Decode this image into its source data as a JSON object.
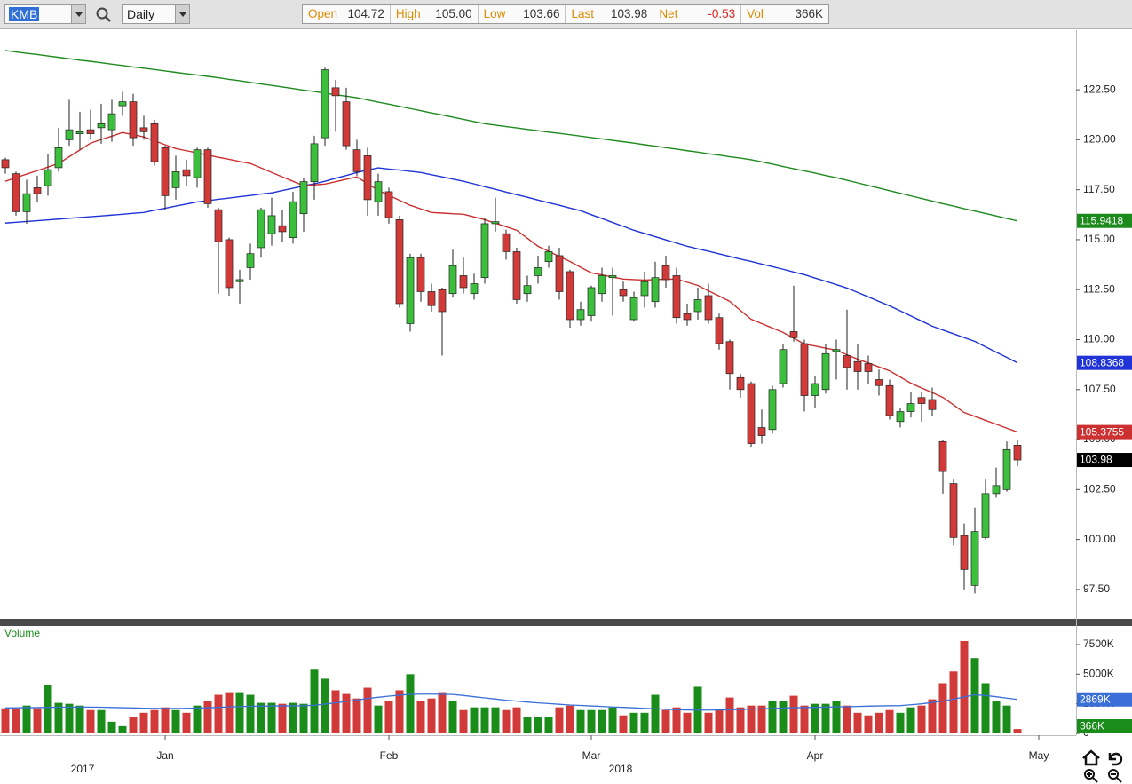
{
  "toolbar": {
    "symbol": "KMB",
    "interval": "Daily",
    "quote": [
      {
        "label": "Open",
        "value": "104.72"
      },
      {
        "label": "High",
        "value": "105.00"
      },
      {
        "label": "Low",
        "value": "103.66"
      },
      {
        "label": "Last",
        "value": "103.98"
      },
      {
        "label": "Net",
        "value": "-0.53"
      },
      {
        "label": "Vol",
        "value": "366K"
      }
    ]
  },
  "chart_data": {
    "type": "candlestick",
    "categories": [
      null,
      null,
      null,
      null,
      null,
      null,
      null,
      null,
      null,
      null,
      null,
      null,
      null,
      null,
      null,
      "Jan",
      null,
      null,
      null,
      null,
      null,
      null,
      null,
      null,
      null,
      null,
      null,
      null,
      null,
      null,
      null,
      null,
      null,
      null,
      null,
      null,
      "Feb",
      null,
      null,
      null,
      null,
      null,
      null,
      null,
      null,
      null,
      null,
      null,
      null,
      null,
      null,
      null,
      null,
      null,
      null,
      "Mar",
      null,
      null,
      null,
      null,
      null,
      null,
      null,
      null,
      null,
      null,
      null,
      null,
      null,
      null,
      null,
      null,
      null,
      null,
      null,
      null,
      "Apr",
      null,
      null,
      null,
      null,
      null,
      null,
      null,
      null,
      null,
      null,
      null,
      null,
      null,
      null,
      null,
      null,
      null,
      null,
      null,
      null,
      "May"
    ],
    "years": [
      "2017",
      "2018"
    ],
    "open": [
      119.0,
      118.3,
      116.4,
      117.6,
      117.7,
      118.6,
      120.0,
      120.3,
      120.5,
      120.6,
      120.5,
      121.7,
      121.9,
      120.6,
      120.8,
      119.6,
      117.6,
      118.5,
      118.1,
      119.5,
      116.5,
      115.0,
      112.9,
      113.6,
      114.6,
      115.3,
      115.7,
      115.1,
      116.3,
      117.9,
      120.1,
      122.6,
      121.9,
      119.5,
      119.2,
      116.9,
      117.4,
      116.0,
      110.8,
      114.1,
      112.4,
      112.5,
      112.3,
      113.2,
      112.3,
      113.1,
      115.8,
      115.3,
      114.4,
      112.3,
      113.2,
      113.9,
      114.2,
      113.4,
      111.0,
      111.2,
      112.3,
      113.1,
      112.5,
      111.0,
      112.2,
      111.9,
      113.7,
      113.2,
      111.3,
      111.4,
      112.2,
      111.1,
      109.9,
      108.1,
      107.8,
      105.6,
      105.5,
      107.8,
      110.4,
      109.8,
      107.2,
      107.5,
      109.4,
      109.2,
      108.9,
      108.8,
      108.0,
      107.7,
      105.9,
      106.4,
      107.1,
      107.0,
      104.9,
      102.8,
      100.2,
      97.7,
      100.1,
      102.3,
      102.5,
      104.72,
      null,
      null
    ],
    "high": [
      119.1,
      118.4,
      118.0,
      118.2,
      119.3,
      120.6,
      122.0,
      121.4,
      121.5,
      121.8,
      122.0,
      122.4,
      122.3,
      121.2,
      121.0,
      119.7,
      119.2,
      119.0,
      119.6,
      119.6,
      116.6,
      115.1,
      113.5,
      114.8,
      116.6,
      117.1,
      116.5,
      117.4,
      118.1,
      120.2,
      123.6,
      123.0,
      122.6,
      120.0,
      119.6,
      118.3,
      117.6,
      116.2,
      114.3,
      114.3,
      112.8,
      112.6,
      114.5,
      114.1,
      113.3,
      116.1,
      117.1,
      115.5,
      114.6,
      113.2,
      114.2,
      114.7,
      114.6,
      113.5,
      111.9,
      112.7,
      113.6,
      113.6,
      112.9,
      112.4,
      113.4,
      113.9,
      114.2,
      113.6,
      111.8,
      112.6,
      112.8,
      111.3,
      110.0,
      108.3,
      107.9,
      106.5,
      107.7,
      109.8,
      112.7,
      110.0,
      108.2,
      109.8,
      110.0,
      111.5,
      109.8,
      109.2,
      108.5,
      108.0,
      106.6,
      107.4,
      107.4,
      107.6,
      105.0,
      103.0,
      100.8,
      101.6,
      103.0,
      103.6,
      104.9,
      105.0,
      null,
      null
    ],
    "low": [
      118.3,
      116.2,
      115.8,
      116.9,
      117.2,
      118.4,
      119.7,
      119.5,
      120.0,
      119.8,
      119.9,
      121.2,
      119.7,
      120.0,
      118.7,
      116.5,
      117.0,
      117.7,
      117.6,
      116.6,
      112.3,
      112.2,
      111.8,
      113.0,
      114.1,
      114.7,
      114.9,
      114.8,
      115.4,
      117.0,
      119.7,
      120.4,
      119.5,
      118.2,
      116.2,
      116.2,
      115.8,
      111.6,
      110.4,
      111.9,
      111.4,
      109.2,
      112.1,
      112.3,
      112.0,
      112.8,
      115.4,
      114.0,
      111.8,
      111.9,
      112.8,
      113.6,
      112.0,
      110.6,
      110.7,
      110.9,
      111.9,
      111.2,
      111.9,
      110.9,
      111.6,
      111.6,
      112.6,
      110.8,
      110.7,
      111.0,
      110.8,
      109.5,
      107.5,
      107.1,
      104.6,
      104.8,
      105.3,
      107.6,
      109.9,
      106.4,
      106.6,
      107.3,
      108.0,
      107.5,
      107.5,
      107.8,
      107.2,
      106.0,
      105.6,
      106.1,
      105.9,
      106.2,
      102.3,
      99.7,
      97.5,
      97.3,
      100.0,
      102.1,
      102.4,
      103.66,
      null,
      null
    ],
    "close": [
      118.6,
      116.4,
      117.3,
      117.3,
      118.5,
      119.6,
      120.5,
      120.4,
      120.3,
      120.8,
      121.3,
      121.9,
      120.1,
      120.4,
      118.9,
      117.2,
      118.4,
      118.2,
      119.5,
      116.8,
      114.9,
      112.6,
      113.0,
      114.3,
      116.5,
      116.2,
      115.4,
      116.9,
      117.9,
      119.8,
      123.5,
      122.2,
      119.7,
      118.4,
      117.0,
      117.9,
      116.1,
      111.8,
      114.1,
      112.4,
      111.7,
      111.4,
      113.7,
      112.6,
      112.8,
      115.8,
      115.9,
      114.4,
      112.0,
      112.7,
      113.6,
      114.4,
      112.4,
      111.0,
      111.5,
      112.6,
      113.2,
      113.2,
      112.2,
      112.1,
      112.9,
      113.1,
      113.0,
      111.1,
      111.0,
      112.0,
      111.0,
      109.8,
      108.3,
      107.5,
      104.8,
      105.2,
      107.5,
      109.5,
      110.1,
      107.2,
      107.8,
      109.3,
      109.5,
      108.6,
      108.4,
      108.4,
      107.7,
      106.2,
      106.4,
      106.8,
      106.8,
      106.5,
      103.4,
      100.1,
      98.5,
      100.4,
      102.3,
      102.7,
      104.5,
      103.98,
      null,
      null
    ],
    "up_color": "#3cbf3c",
    "down_color": "#d23a3a",
    "last_price_color": "#000000",
    "ylim": [
      96.03,
      125.48
    ],
    "yticks": [
      {
        "value": 97.5,
        "label": "97.50"
      },
      {
        "value": 100,
        "label": "100.00"
      },
      {
        "value": 102.5,
        "label": "102.50"
      },
      {
        "value": 105,
        "label": "105.00"
      },
      {
        "value": 107.5,
        "label": "107.50"
      },
      {
        "value": 110,
        "label": "110.00"
      },
      {
        "value": 112.5,
        "label": "112.50"
      },
      {
        "value": 115,
        "label": "115.00"
      },
      {
        "value": 117.5,
        "label": "117.50"
      },
      {
        "value": 120,
        "label": "120.00"
      },
      {
        "value": 122.5,
        "label": "122.50"
      }
    ],
    "grid": false,
    "moving_averages": [
      {
        "color": "#1d8a1d",
        "values": [
          124.46,
          124.39,
          124.32,
          124.26,
          124.19,
          124.12,
          124.05,
          123.98,
          123.92,
          123.85,
          123.78,
          123.71,
          123.64,
          123.58,
          123.51,
          123.44,
          123.37,
          123.3,
          123.24,
          123.17,
          123.1,
          123.02,
          122.95,
          122.87,
          122.79,
          122.72,
          122.64,
          122.56,
          122.48,
          122.41,
          122.33,
          122.25,
          122.18,
          122.1,
          121.99,
          121.88,
          121.78,
          121.67,
          121.56,
          121.45,
          121.34,
          121.24,
          121.13,
          121.02,
          120.91,
          120.8,
          120.73,
          120.66,
          120.59,
          120.52,
          120.45,
          120.38,
          120.32,
          120.25,
          120.18,
          120.11,
          120.04,
          119.97,
          119.9,
          119.83,
          119.75,
          119.68,
          119.6,
          119.53,
          119.45,
          119.38,
          119.3,
          119.23,
          119.15,
          119.08,
          119.0,
          118.89,
          118.78,
          118.66,
          118.55,
          118.44,
          118.33,
          118.21,
          118.1,
          117.97,
          117.84,
          117.71,
          117.58,
          117.45,
          117.32,
          117.19,
          117.06,
          116.93,
          116.8,
          116.68,
          116.55,
          116.43,
          116.31,
          116.19,
          116.06,
          115.9418,
          null,
          null
        ]
      },
      {
        "color": "#1f33d6",
        "values": [
          115.83,
          115.87,
          115.91,
          115.95,
          115.99,
          116.03,
          116.07,
          116.11,
          116.15,
          116.19,
          116.23,
          116.27,
          116.32,
          116.36,
          116.47,
          116.57,
          116.68,
          116.78,
          116.89,
          116.95,
          117.02,
          117.08,
          117.15,
          117.21,
          117.28,
          117.34,
          117.46,
          117.57,
          117.69,
          117.8,
          117.92,
          118.07,
          118.21,
          118.36,
          118.48,
          118.59,
          118.53,
          118.48,
          118.42,
          118.36,
          118.25,
          118.14,
          118.03,
          117.92,
          117.79,
          117.65,
          117.52,
          117.38,
          117.25,
          117.12,
          116.98,
          116.85,
          116.72,
          116.58,
          116.45,
          116.25,
          116.06,
          115.86,
          115.67,
          115.47,
          115.31,
          115.15,
          114.99,
          114.83,
          114.67,
          114.54,
          114.42,
          114.29,
          114.16,
          114.03,
          113.91,
          113.78,
          113.65,
          113.52,
          113.38,
          113.25,
          113.08,
          112.92,
          112.75,
          112.58,
          112.36,
          112.14,
          111.91,
          111.69,
          111.44,
          111.18,
          110.93,
          110.67,
          110.48,
          110.29,
          110.1,
          109.91,
          109.64,
          109.37,
          109.11,
          108.8368,
          null,
          null
        ]
      },
      {
        "color": "#cc3030",
        "values": [
          117.92,
          118.1,
          118.28,
          118.45,
          118.63,
          118.81,
          119.15,
          119.49,
          119.83,
          120.01,
          120.18,
          120.36,
          120.25,
          120.14,
          119.95,
          119.75,
          119.56,
          119.45,
          119.34,
          119.23,
          119.12,
          119.02,
          118.91,
          118.81,
          118.59,
          118.36,
          118.14,
          117.92,
          117.7,
          117.74,
          117.78,
          117.9,
          118.02,
          118.14,
          117.8,
          117.47,
          117.22,
          116.97,
          116.72,
          116.54,
          116.36,
          116.33,
          116.3,
          116.27,
          116.14,
          116.0,
          115.82,
          115.65,
          115.47,
          115.07,
          114.67,
          114.42,
          114.16,
          113.91,
          113.62,
          113.34,
          113.24,
          113.13,
          113.03,
          113.0,
          112.98,
          113.0,
          113.02,
          113.03,
          112.87,
          112.71,
          112.44,
          112.18,
          111.91,
          111.46,
          111.02,
          110.8,
          110.58,
          110.36,
          110.07,
          109.78,
          109.68,
          109.57,
          109.47,
          109.24,
          109.02,
          108.83,
          108.63,
          108.44,
          108.13,
          107.82,
          107.58,
          107.35,
          107.11,
          106.73,
          106.35,
          106.16,
          105.96,
          105.77,
          105.57,
          105.3755,
          null,
          null
        ]
      }
    ],
    "volume": {
      "name": "Volume",
      "values": [
        2120,
        2120,
        2350,
        2120,
        4090,
        2580,
        2500,
        2350,
        1970,
        1970,
        985,
        610,
        1360,
        1740,
        1970,
        2200,
        1970,
        1740,
        2350,
        2730,
        3260,
        3480,
        3480,
        3260,
        2580,
        2580,
        2500,
        2580,
        2500,
        5380,
        4620,
        3640,
        3330,
        2950,
        3860,
        2350,
        2730,
        3640,
        5000,
        2730,
        2950,
        3480,
        2730,
        1970,
        2200,
        2200,
        2200,
        1970,
        2200,
        1360,
        1360,
        1360,
        2200,
        2350,
        1970,
        1970,
        1970,
        2200,
        1520,
        1740,
        1740,
        3260,
        1970,
        2200,
        1740,
        3940,
        1740,
        1970,
        3030,
        2200,
        2350,
        2350,
        2730,
        2730,
        3180,
        2350,
        2500,
        2500,
        2730,
        2350,
        1740,
        1520,
        1740,
        1970,
        1740,
        2200,
        2350,
        2880,
        4240,
        5230,
        7800,
        6360,
        4240,
        2730,
        2350,
        366,
        null,
        null
      ],
      "last_label": "366K",
      "up_color": "#1a8c1a",
      "down_color": "#d23a3a",
      "tag_color": "#1a8c1a",
      "ylim": [
        0,
        9075
      ],
      "yticks": [
        0,
        {
          "value": 2500,
          "label": "2500K"
        },
        {
          "value": 5000,
          "label": "5000K"
        },
        {
          "value": 7500,
          "label": "7500K"
        }
      ],
      "average": {
        "color": "#3a6fd8",
        "last_label": "2869K",
        "values": [
          2150,
          2160,
          2170,
          2180,
          2200,
          2210,
          2210,
          2220,
          2220,
          2210,
          2190,
          2170,
          2150,
          2130,
          2120,
          2110,
          2110,
          2120,
          2140,
          2170,
          2200,
          2240,
          2270,
          2290,
          2300,
          2310,
          2320,
          2330,
          2340,
          2380,
          2480,
          2580,
          2700,
          2820,
          2950,
          3050,
          3150,
          3230,
          3300,
          3320,
          3320,
          3310,
          3290,
          3200,
          3100,
          3000,
          2900,
          2800,
          2730,
          2650,
          2580,
          2520,
          2460,
          2400,
          2360,
          2320,
          2280,
          2230,
          2200,
          2160,
          2120,
          2080,
          2040,
          2000,
          1980,
          1970,
          1970,
          1980,
          2000,
          2020,
          2050,
          2080,
          2110,
          2140,
          2170,
          2190,
          2200,
          2220,
          2240,
          2260,
          2280,
          2300,
          2320,
          2340,
          2350,
          2420,
          2500,
          2610,
          2730,
          2900,
          3080,
          3260,
          3200,
          3100,
          2980,
          2869,
          null,
          null
        ]
      }
    }
  }
}
